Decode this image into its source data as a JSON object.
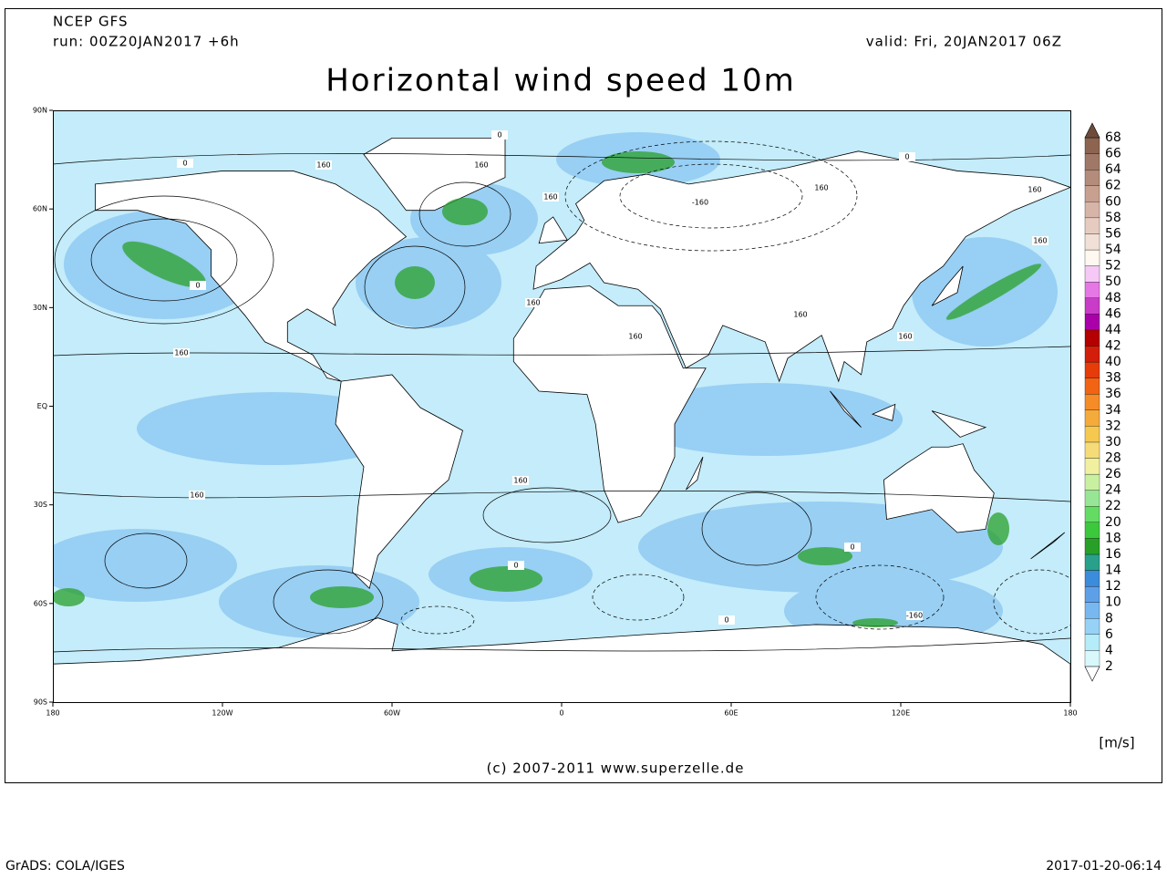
{
  "header": {
    "model": "NCEP GFS",
    "run": "run: 00Z20JAN2017 +6h",
    "valid": "valid: Fri, 20JAN2017 06Z",
    "title": "Horizontal wind speed 10m"
  },
  "map": {
    "lat_labels": [
      "90N",
      "60N",
      "30N",
      "EQ",
      "30S",
      "60S",
      "90S"
    ],
    "lon_labels": [
      "180",
      "120W",
      "60W",
      "0",
      "60E",
      "120E",
      "180"
    ],
    "contour_labels": [
      "160",
      "0",
      "160",
      "160",
      "0",
      "-160",
      "0",
      "160",
      "160",
      "160",
      "160",
      "160",
      "160",
      "0",
      "160",
      "160",
      "0",
      "160",
      "-160",
      "0",
      "0",
      "160"
    ]
  },
  "colorbar": {
    "levels": [
      2,
      4,
      6,
      8,
      10,
      12,
      14,
      16,
      18,
      20,
      22,
      24,
      26,
      28,
      30,
      32,
      34,
      36,
      38,
      40,
      42,
      44,
      46,
      48,
      50,
      52,
      54,
      56,
      58,
      60,
      62,
      64,
      66,
      68
    ],
    "colors": [
      "#ffffff",
      "#d8f8fc",
      "#b4ecfa",
      "#96d2f6",
      "#78b8f0",
      "#5ea0e8",
      "#3c8cdc",
      "#28a08c",
      "#28a028",
      "#3cc83c",
      "#64dc64",
      "#96e696",
      "#c8f0a0",
      "#f0f0a0",
      "#f5dc78",
      "#f5c850",
      "#f5aa3c",
      "#f58c28",
      "#f06414",
      "#e63c0a",
      "#d21e0a",
      "#b40000",
      "#aa00aa",
      "#c83cc8",
      "#e678e6",
      "#f5c8f5",
      "#fff8f0",
      "#f0e0d6",
      "#e6ccc0",
      "#d6b4a8",
      "#c8a090",
      "#b48c7c",
      "#a07868",
      "#8c6450",
      "#6e4c3c"
    ],
    "unit": "[m/s]"
  },
  "credit": "(c) 2007-2011 www.superzelle.de",
  "footer": {
    "left": "GrADS: COLA/IGES",
    "right": "2017-01-20-06:14"
  }
}
